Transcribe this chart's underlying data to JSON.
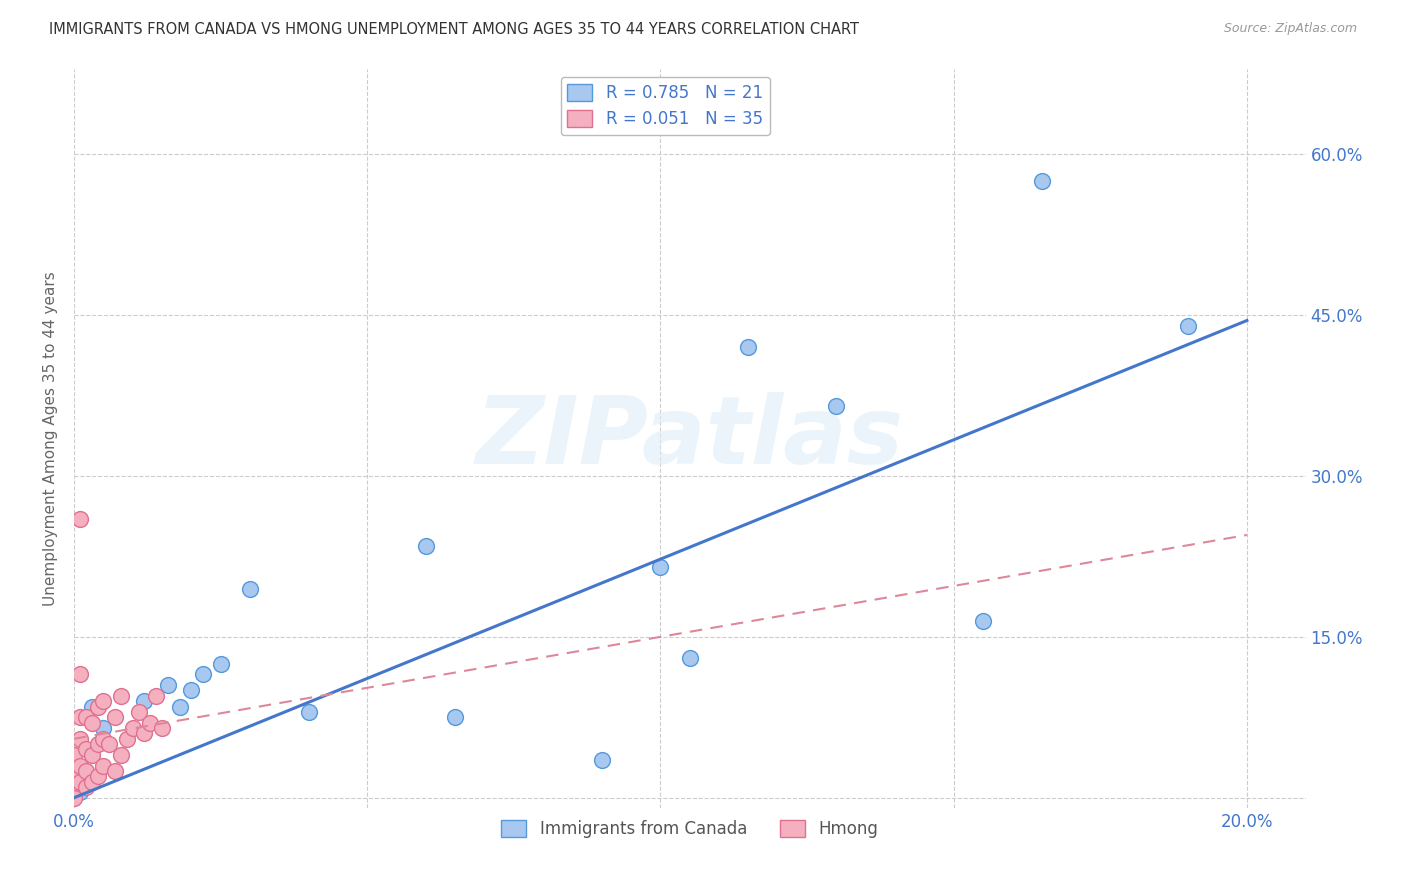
{
  "title": "IMMIGRANTS FROM CANADA VS HMONG UNEMPLOYMENT AMONG AGES 35 TO 44 YEARS CORRELATION CHART",
  "source": "Source: ZipAtlas.com",
  "ylabel": "Unemployment Among Ages 35 to 44 years",
  "xlim": [
    0.0,
    0.21
  ],
  "ylim": [
    -0.01,
    0.68
  ],
  "xticks": [
    0.0,
    0.05,
    0.1,
    0.15,
    0.2
  ],
  "yticks": [
    0.0,
    0.15,
    0.3,
    0.45,
    0.6
  ],
  "xtick_labels": [
    "0.0%",
    "",
    "",
    "",
    "20.0%"
  ],
  "ytick_labels_right": [
    "",
    "15.0%",
    "30.0%",
    "45.0%",
    "60.0%"
  ],
  "canada_color": "#a8c8f0",
  "canada_edge_color": "#5599dd",
  "hmong_color": "#f5b0c0",
  "hmong_edge_color": "#e07090",
  "canada_line_color": "#4477cc",
  "hmong_line_color": "#dd8899",
  "legend_R_canada": "R = 0.785",
  "legend_N_canada": "N = 21",
  "legend_R_hmong": "R = 0.051",
  "legend_N_hmong": "N = 35",
  "legend_text_color": "#4477cc",
  "watermark_text": "ZIPatlas",
  "watermark_color": "#ddeeff",
  "canada_points_x": [
    0.001,
    0.003,
    0.005,
    0.012,
    0.016,
    0.018,
    0.02,
    0.022,
    0.025,
    0.03,
    0.04,
    0.06,
    0.065,
    0.09,
    0.1,
    0.105,
    0.115,
    0.13,
    0.155,
    0.165,
    0.19
  ],
  "canada_points_y": [
    0.005,
    0.085,
    0.065,
    0.09,
    0.105,
    0.085,
    0.1,
    0.115,
    0.125,
    0.195,
    0.08,
    0.235,
    0.075,
    0.035,
    0.215,
    0.13,
    0.42,
    0.365,
    0.165,
    0.575,
    0.44
  ],
  "hmong_points_x": [
    0.0,
    0.0,
    0.0,
    0.001,
    0.001,
    0.001,
    0.001,
    0.002,
    0.002,
    0.002,
    0.002,
    0.003,
    0.003,
    0.003,
    0.004,
    0.004,
    0.004,
    0.005,
    0.005,
    0.005,
    0.006,
    0.007,
    0.007,
    0.008,
    0.008,
    0.009,
    0.01,
    0.011,
    0.012,
    0.013,
    0.014,
    0.015,
    0.001,
    0.001,
    0.0
  ],
  "hmong_points_y": [
    0.01,
    0.025,
    0.04,
    0.015,
    0.03,
    0.055,
    0.075,
    0.01,
    0.025,
    0.045,
    0.075,
    0.015,
    0.04,
    0.07,
    0.02,
    0.05,
    0.085,
    0.03,
    0.055,
    0.09,
    0.05,
    0.025,
    0.075,
    0.04,
    0.095,
    0.055,
    0.065,
    0.08,
    0.06,
    0.07,
    0.095,
    0.065,
    0.115,
    0.26,
    0.0
  ],
  "canada_line_x": [
    0.0,
    0.2
  ],
  "canada_line_y": [
    0.0,
    0.445
  ],
  "hmong_line_x": [
    0.0,
    0.2
  ],
  "hmong_line_y": [
    0.055,
    0.245
  ],
  "background_color": "#ffffff",
  "grid_color": "#cccccc"
}
